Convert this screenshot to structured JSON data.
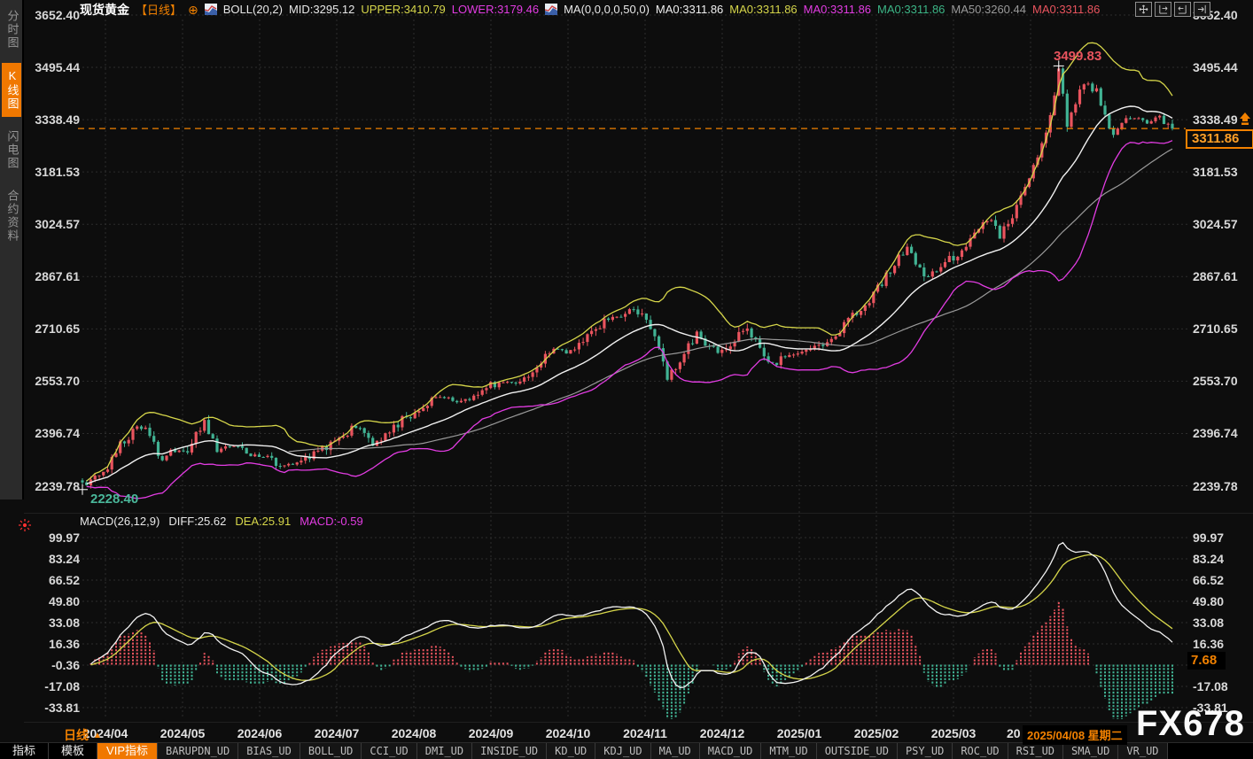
{
  "colors": {
    "accent_orange": "#f28100",
    "up_red": "#e9545e",
    "down_green": "#41b394",
    "boll_upper_yellow": "#d6d64a",
    "boll_lower_magenta": "#e23ce2",
    "boll_mid_white": "#f0f0f0",
    "ma50_gray": "#9a9a9a",
    "grid": "#2d2d2d",
    "axis_text": "#d9d9d9",
    "panel_bg": "#0d0d0d",
    "sidebar_bg": "#2b2b2b"
  },
  "header": {
    "symbol": "现货黄金",
    "period_tag": "【日线】",
    "boll_label": "BOLL(20,2)",
    "boll_mid": "MID:3295.12",
    "boll_upper": "UPPER:3410.79",
    "boll_lower": "LOWER:3179.46",
    "ma_label": "MA(0,0,0,0,50,0)",
    "ma_items": [
      {
        "label": "MA0:3311.86",
        "color": "#f0f0f0"
      },
      {
        "label": "MA0:3311.86",
        "color": "#d6d64a"
      },
      {
        "label": "MA0:3311.86",
        "color": "#e23ce2"
      },
      {
        "label": "MA0:3311.86",
        "color": "#3cb586"
      },
      {
        "label": "MA50:3260.44",
        "color": "#9a9a9a"
      },
      {
        "label": "MA0:3311.86",
        "color": "#e9545e"
      }
    ]
  },
  "icons": {
    "add": "⊕",
    "period_arrow": "▲"
  },
  "sidebar": {
    "tabs": [
      {
        "label": "分时图",
        "active": false
      },
      {
        "label": "K线图",
        "active": true
      },
      {
        "label": "闪电图",
        "active": false
      },
      {
        "label": "合约资料",
        "active": false
      }
    ]
  },
  "main_axis": {
    "values": [
      "3652.40",
      "3495.44",
      "3338.49",
      "3181.53",
      "3024.57",
      "2867.61",
      "2710.65",
      "2553.70",
      "2396.74",
      "2239.78"
    ]
  },
  "macd_axis": {
    "values": [
      "99.97",
      "83.24",
      "66.52",
      "49.80",
      "33.08",
      "16.36",
      "-0.36",
      "-17.08",
      "-33.81"
    ]
  },
  "macd_header": {
    "name": "MACD(26,12,9)",
    "diff": "DIFF:25.62",
    "dea": "DEA:25.91",
    "macd": "MACD:-0.59"
  },
  "annotations": {
    "peak_price": "3499.83",
    "trough_price": "2228.40",
    "current_price": "3311.86",
    "macd_current": "7.68"
  },
  "xaxis": {
    "period_label": "日线",
    "labels": [
      "2024/04",
      "2024/05",
      "2024/06",
      "2024/07",
      "2024/08",
      "2024/09",
      "2024/10",
      "2024/11",
      "2024/12",
      "2025/01",
      "2025/02",
      "2025/03"
    ],
    "partial_label": "20",
    "date_tooltip": "2025/04/08 星期二"
  },
  "bottom_toolbar": {
    "items": [
      {
        "label": "指标",
        "type": "tab"
      },
      {
        "label": "模板",
        "type": "tab"
      },
      {
        "label": "VIP指标",
        "type": "vip"
      },
      {
        "label": "BARUPDN_UD",
        "type": "mono"
      },
      {
        "label": "BIAS_UD",
        "type": "mono"
      },
      {
        "label": "BOLL_UD",
        "type": "mono"
      },
      {
        "label": "CCI_UD",
        "type": "mono"
      },
      {
        "label": "DMI_UD",
        "type": "mono"
      },
      {
        "label": "INSIDE_UD",
        "type": "mono"
      },
      {
        "label": "KD_UD",
        "type": "mono"
      },
      {
        "label": "KDJ_UD",
        "type": "mono"
      },
      {
        "label": "MA_UD",
        "type": "mono"
      },
      {
        "label": "MACD_UD",
        "type": "mono"
      },
      {
        "label": "MTM_UD",
        "type": "mono"
      },
      {
        "label": "OUTSIDE_UD",
        "type": "mono"
      },
      {
        "label": "PSY_UD",
        "type": "mono"
      },
      {
        "label": "ROC_UD",
        "type": "mono"
      },
      {
        "label": "RSI_UD",
        "type": "mono"
      },
      {
        "label": "SMA_UD",
        "type": "mono"
      },
      {
        "label": "VR_UD",
        "type": "mono"
      }
    ]
  },
  "watermark": "FX678",
  "chart_data": {
    "type": "candlestick",
    "title": "现货黄金 日线 (Spot Gold Daily) with BOLL(20,2), MA50 and MACD(26,12,9)",
    "x_axis_months": [
      "2024/04",
      "2024/05",
      "2024/06",
      "2024/07",
      "2024/08",
      "2024/09",
      "2024/10",
      "2024/11",
      "2024/12",
      "2025/01",
      "2025/02",
      "2025/03",
      "2025/04"
    ],
    "y_axis_ticks_main": [
      3652.4,
      3495.44,
      3338.49,
      3181.53,
      3024.57,
      2867.61,
      2710.65,
      2553.7,
      2396.74,
      2239.78
    ],
    "y_axis_ticks_macd": [
      99.97,
      83.24,
      66.52,
      49.8,
      33.08,
      16.36,
      -0.36,
      -17.08,
      -33.81
    ],
    "last_close": 3311.86,
    "marked_high": 3499.83,
    "marked_low": 2228.4,
    "indicators": {
      "boll": {
        "period": 20,
        "mult": 2,
        "mid": 3295.12,
        "upper": 3410.79,
        "lower": 3179.46
      },
      "ma50": 3260.44,
      "macd": {
        "fast": 26,
        "slow": 12,
        "signal": 9,
        "diff": 25.62,
        "dea": 25.91,
        "macd": -0.59,
        "right_axis_value": 7.68
      }
    },
    "price_anchors": [
      [
        0,
        2245
      ],
      [
        3,
        2268
      ],
      [
        6,
        2300
      ],
      [
        9,
        2360
      ],
      [
        13,
        2420
      ],
      [
        16,
        2395
      ],
      [
        19,
        2312
      ],
      [
        22,
        2350
      ],
      [
        25,
        2342
      ],
      [
        29,
        2438
      ],
      [
        32,
        2348
      ],
      [
        36,
        2360
      ],
      [
        40,
        2330
      ],
      [
        44,
        2322
      ],
      [
        48,
        2300
      ],
      [
        52,
        2312
      ],
      [
        55,
        2332
      ],
      [
        59,
        2365
      ],
      [
        63,
        2402
      ],
      [
        66,
        2420
      ],
      [
        69,
        2368
      ],
      [
        73,
        2405
      ],
      [
        77,
        2448
      ],
      [
        80,
        2468
      ],
      [
        85,
        2505
      ],
      [
        89,
        2494
      ],
      [
        93,
        2512
      ],
      [
        97,
        2542
      ],
      [
        100,
        2555
      ],
      [
        103,
        2548
      ],
      [
        106,
        2568
      ],
      [
        109,
        2618
      ],
      [
        112,
        2655
      ],
      [
        115,
        2638
      ],
      [
        118,
        2672
      ],
      [
        121,
        2700
      ],
      [
        125,
        2738
      ],
      [
        129,
        2748
      ],
      [
        131,
        2772
      ],
      [
        133,
        2758
      ],
      [
        136,
        2678
      ],
      [
        139,
        2568
      ],
      [
        141,
        2598
      ],
      [
        143,
        2630
      ],
      [
        146,
        2702
      ],
      [
        148,
        2668
      ],
      [
        151,
        2642
      ],
      [
        154,
        2668
      ],
      [
        156,
        2700
      ],
      [
        158,
        2715
      ],
      [
        160,
        2672
      ],
      [
        163,
        2598
      ],
      [
        166,
        2622
      ],
      [
        169,
        2634
      ],
      [
        172,
        2642
      ],
      [
        176,
        2668
      ],
      [
        180,
        2708
      ],
      [
        184,
        2762
      ],
      [
        187,
        2800
      ],
      [
        190,
        2845
      ],
      [
        193,
        2912
      ],
      [
        196,
        2948
      ],
      [
        199,
        2888
      ],
      [
        201,
        2868
      ],
      [
        204,
        2908
      ],
      [
        207,
        2928
      ],
      [
        210,
        2952
      ],
      [
        213,
        3008
      ],
      [
        216,
        3048
      ],
      [
        218,
        2988
      ],
      [
        221,
        3052
      ],
      [
        224,
        3132
      ],
      [
        227,
        3222
      ],
      [
        230,
        3352
      ],
      [
        232,
        3495
      ],
      [
        234,
        3330
      ],
      [
        236,
        3390
      ],
      [
        238,
        3448
      ],
      [
        241,
        3428
      ],
      [
        243,
        3350
      ],
      [
        245,
        3288
      ],
      [
        247,
        3328
      ],
      [
        250,
        3342
      ],
      [
        253,
        3330
      ],
      [
        256,
        3348
      ],
      [
        259,
        3311.86
      ]
    ]
  }
}
